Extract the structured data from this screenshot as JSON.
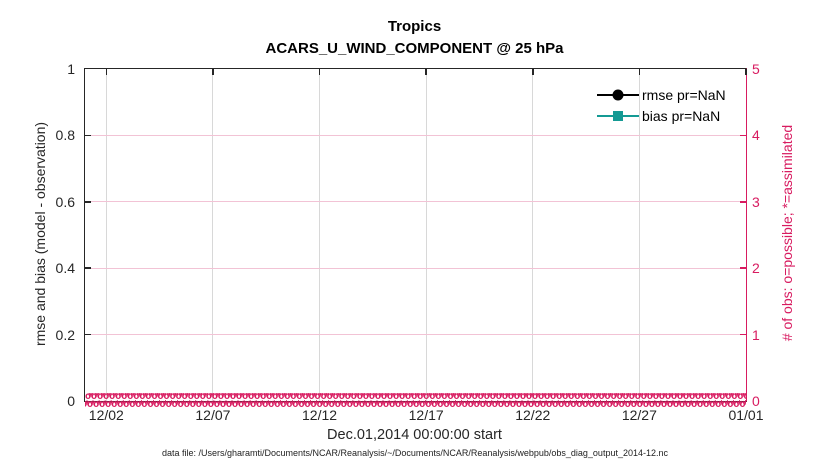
{
  "page": {
    "caption": "data file: /Users/gharamti/Documents/NCAR/Reanalysis/~/Documents/NCAR/Reanalysis/webpub/obs_diag_output_2014-12.nc"
  },
  "colors": {
    "axis_dark": "#262626",
    "right_axis_pink": "#d81b60",
    "grid_gray": "#d8d8d8",
    "grid_pink": "#f2c3d5",
    "rmse_black": "#000000",
    "bias_teal": "#149a94"
  },
  "chart_data": {
    "type": "line",
    "title": "Tropics",
    "subtitle": "ACARS_U_WIND_COMPONENT @ 25 hPa",
    "xlabel": "Dec.01,2014 00:00:00 start",
    "left_axis": {
      "label": "rmse and bias (model - observation)",
      "lim": [
        0,
        1
      ],
      "ticks": [
        0,
        0.2,
        0.4,
        0.6,
        0.8,
        1
      ],
      "tick_labels": [
        "0",
        "0.2",
        "0.4",
        "0.6",
        "0.8",
        "1"
      ]
    },
    "right_axis": {
      "label": "# of obs: o=possible; *=assimilated",
      "lim": [
        0,
        5
      ],
      "ticks": [
        0,
        1,
        2,
        3,
        4,
        5
      ],
      "tick_labels": [
        "0",
        "1",
        "2",
        "3",
        "4",
        "5"
      ]
    },
    "xticks": {
      "labels": [
        "12/02",
        "12/07",
        "12/12",
        "12/17",
        "12/22",
        "12/27",
        "01/01"
      ],
      "days": [
        1,
        6,
        11,
        16,
        21,
        26,
        31
      ],
      "range_days": [
        0,
        31
      ]
    },
    "grid": true,
    "legend_position": "top-right",
    "series": [
      {
        "name": "rmse pr=NaN",
        "color": "#000000",
        "marker": "circle",
        "values": "NaN (no curve plotted)"
      },
      {
        "name": "bias pr=NaN",
        "color": "#149a94",
        "marker": "square",
        "values": "NaN (no curve plotted)"
      }
    ],
    "obs_counts": {
      "possible": 0,
      "assimilated": 0,
      "marker_possible": "o",
      "marker_assimilated": "*",
      "color": "#d81b60",
      "note": "all observation counts are 0 across Dec 01 2014 - Jan 01 2015"
    },
    "obs_band": {
      "symbols": "o*",
      "repeat": 140,
      "rows": 2
    }
  }
}
